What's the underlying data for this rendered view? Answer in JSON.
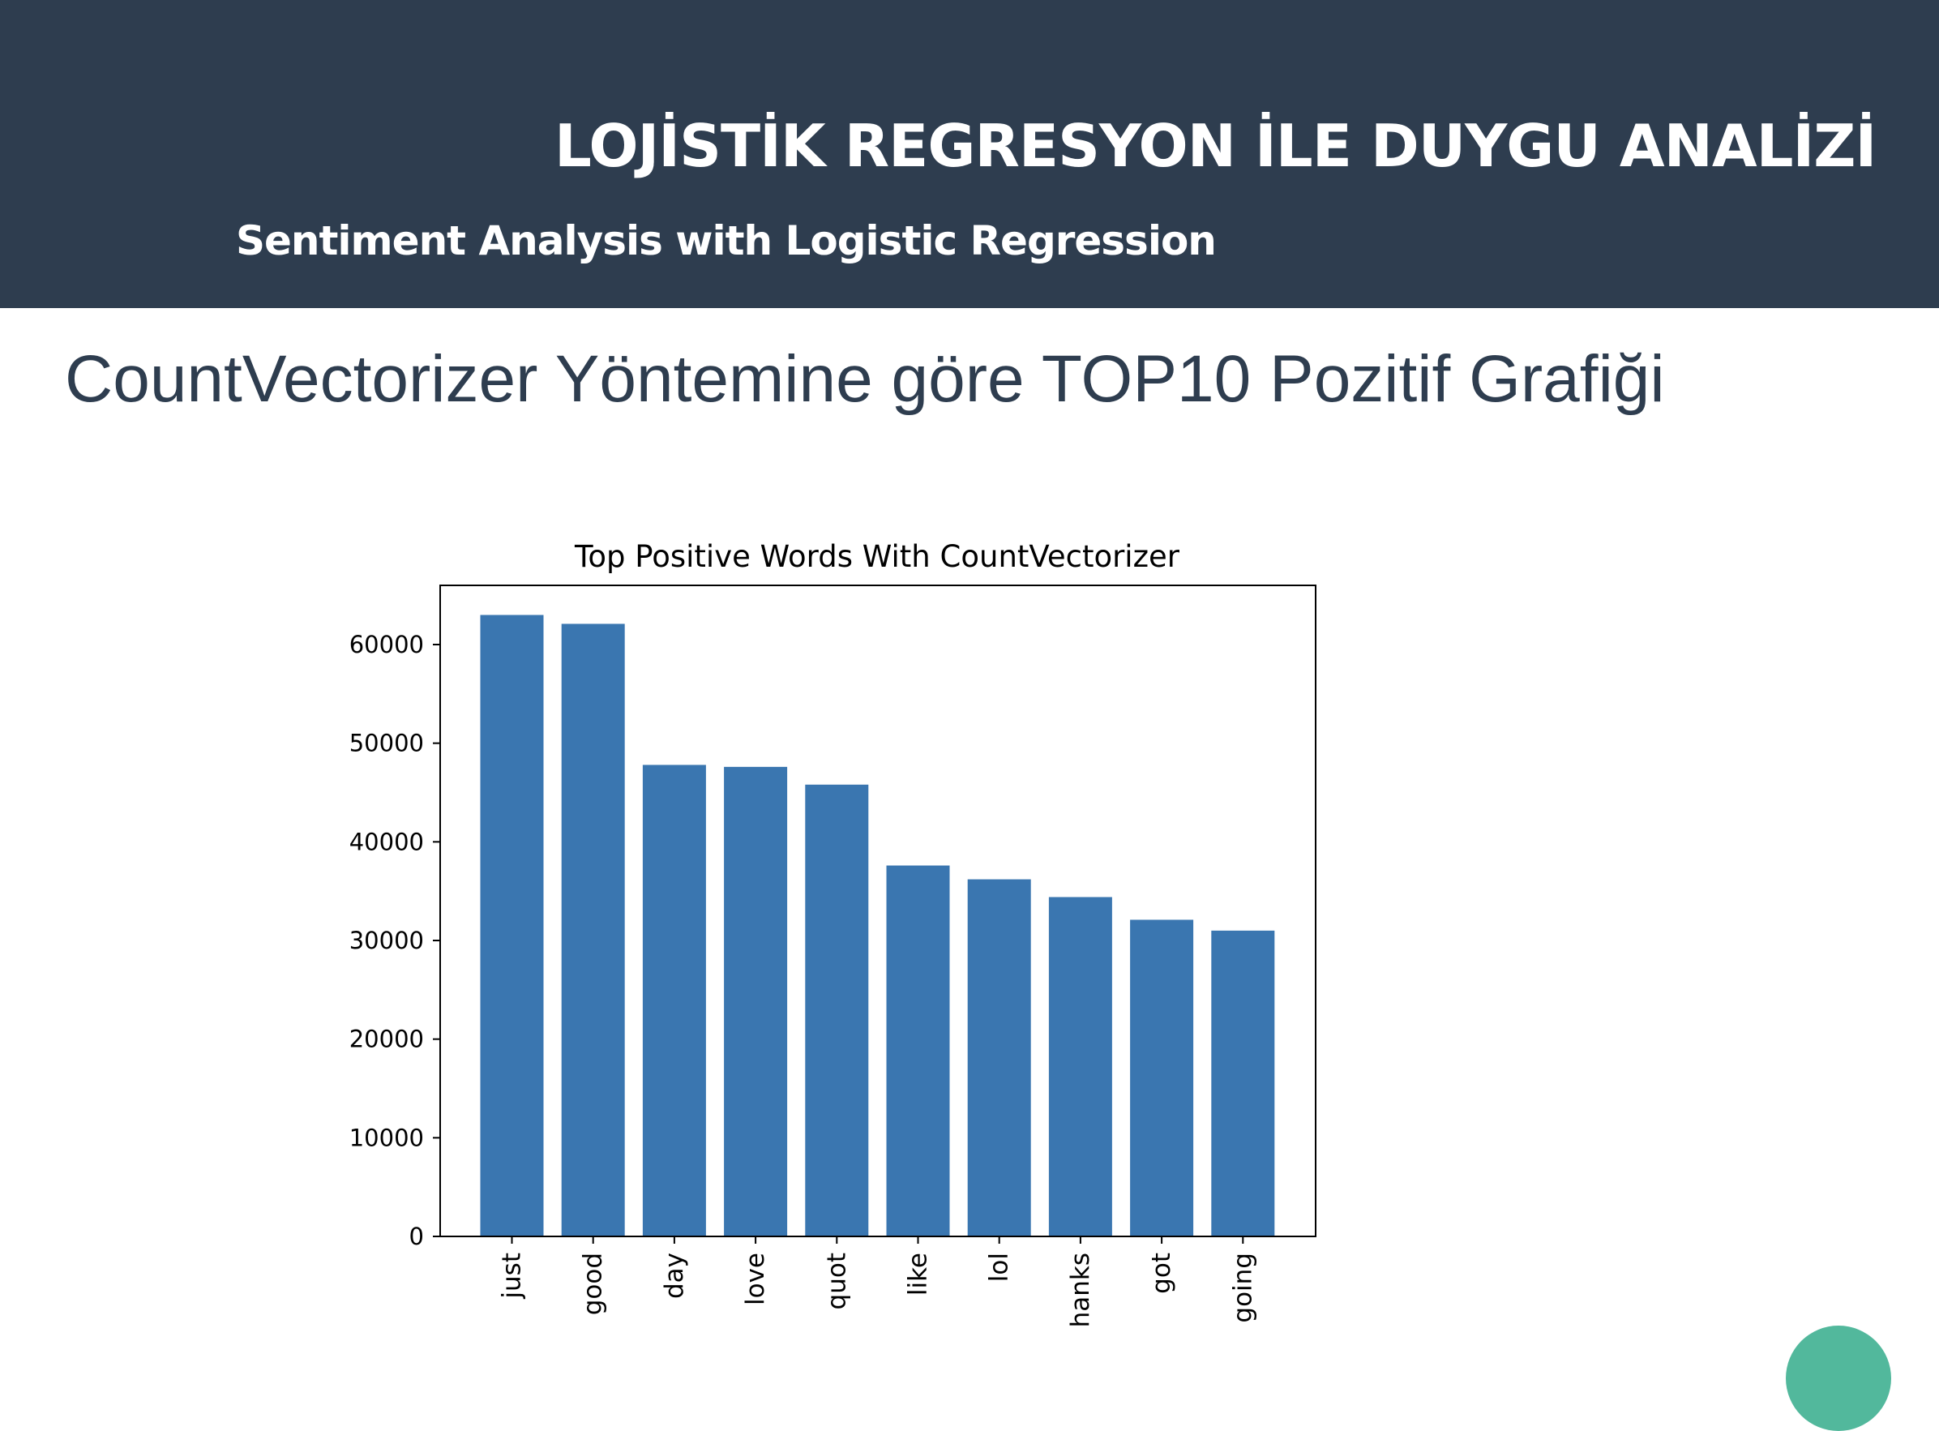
{
  "header": {
    "title": "LOJİSTİK REGRESYON İLE DUYGU ANALİZİ",
    "subtitle": "Sentiment Analysis with Logistic Regression"
  },
  "heading": "CountVectorizer Yöntemine göre TOP10 Pozitif Grafiği",
  "colors": {
    "header_bg": "#2e3d4f",
    "bar": "#3a76b0",
    "accent": "#52b89c"
  },
  "chart_data": {
    "type": "bar",
    "title": "Top Positive Words With CountVectorizer",
    "categories": [
      "just",
      "good",
      "day",
      "love",
      "quot",
      "like",
      "lol",
      "hanks",
      "got",
      "going"
    ],
    "values": [
      63000,
      62100,
      47800,
      47600,
      45800,
      37600,
      36200,
      34400,
      32100,
      31000
    ],
    "xlabel": "",
    "ylabel": "",
    "ylim": [
      0,
      66000
    ],
    "yticks": [
      0,
      10000,
      20000,
      30000,
      40000,
      50000,
      60000
    ],
    "ytick_labels": [
      "0",
      "10000",
      "20000",
      "30000",
      "40000",
      "50000",
      "60000"
    ],
    "grid": false
  }
}
